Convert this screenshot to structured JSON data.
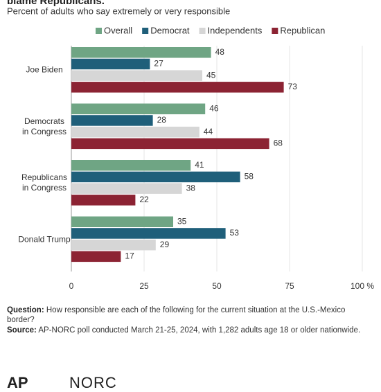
{
  "chart_data": {
    "type": "bar",
    "orientation": "horizontal",
    "title": "blame Republicans.",
    "subtitle": "Percent of adults who say extremely or very responsible",
    "categories": [
      "Joe Biden",
      "Democrats\nin Congress",
      "Republicans\nin Congress",
      "Donald Trump"
    ],
    "series": [
      {
        "name": "Overall",
        "color": "#6fa584",
        "values": [
          48,
          46,
          41,
          35
        ]
      },
      {
        "name": "Democrat",
        "color": "#1f5f7a",
        "values": [
          27,
          28,
          58,
          53
        ]
      },
      {
        "name": "Independents",
        "color": "#d6d6d6",
        "values": [
          45,
          44,
          38,
          29
        ]
      },
      {
        "name": "Republican",
        "color": "#8c2333",
        "values": [
          73,
          68,
          22,
          17
        ]
      }
    ],
    "xlim": [
      0,
      100
    ],
    "xticks": [
      0,
      25,
      50,
      75,
      {
        "value": 100,
        "label": "100 %"
      }
    ],
    "grid": true,
    "legend": "top",
    "question_label": "Question:",
    "question": "How responsible are each of the following for the current situation at the U.S.-Mexico border?",
    "source_label": "Source:",
    "source": "AP-NORC poll conducted March 21-25, 2024, with 1,282 adults age 18 or older nationwide.",
    "logos": [
      "AP",
      "NORC"
    ]
  }
}
